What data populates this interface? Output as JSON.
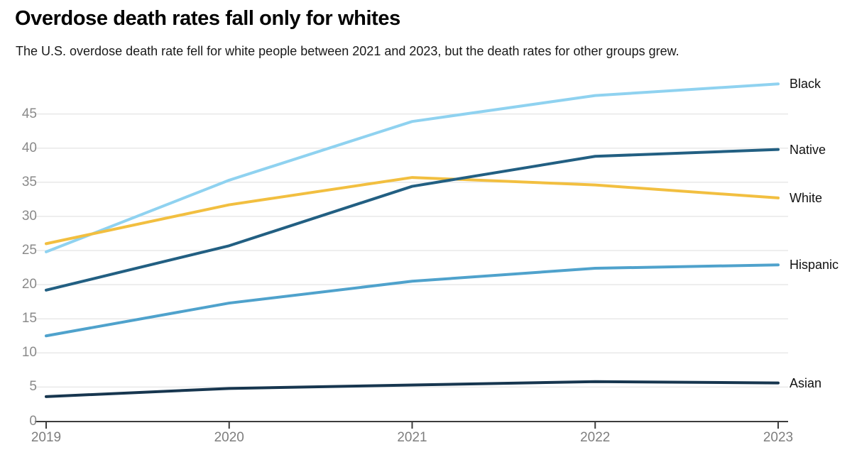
{
  "header": {
    "title": "Overdose death rates fall only for whites",
    "subtitle": "The U.S. overdose death rate fell for white people between 2021 and 2023, but the death rates for other groups grew."
  },
  "chart_data": {
    "type": "line",
    "title": "Overdose death rates fall only for whites",
    "xlabel": "",
    "ylabel": "",
    "x": [
      2019,
      2020,
      2021,
      2022,
      2023
    ],
    "xticks": [
      "2019",
      "2020",
      "2021",
      "2022",
      "2023"
    ],
    "yticks": [
      0,
      5,
      10,
      15,
      20,
      25,
      30,
      35,
      40,
      45
    ],
    "ylim": [
      0,
      50
    ],
    "grid": "horizontal",
    "legend_position": "right-edge-at-line-ends",
    "series": [
      {
        "name": "Black",
        "color": "#8FD2F0",
        "values": [
          24.8,
          35.3,
          43.9,
          47.7,
          49.4
        ]
      },
      {
        "name": "White",
        "color": "#F2BF40",
        "values": [
          26.0,
          31.7,
          35.7,
          34.6,
          32.7
        ]
      },
      {
        "name": "Native",
        "color": "#225F82",
        "values": [
          19.2,
          25.7,
          34.4,
          38.8,
          39.8
        ]
      },
      {
        "name": "Hispanic",
        "color": "#4FA2CC",
        "values": [
          12.5,
          17.3,
          20.5,
          22.4,
          22.9
        ]
      },
      {
        "name": "Asian",
        "color": "#17364F",
        "values": [
          3.6,
          4.8,
          5.3,
          5.8,
          5.6
        ]
      }
    ]
  },
  "colors": {
    "background": "#ffffff",
    "grid": "#e8e8e8",
    "axis": "#3d3d3d",
    "tick_label": "#8a8a8a",
    "series_label": "#111111",
    "title": "#000000",
    "subtitle": "#191919"
  }
}
